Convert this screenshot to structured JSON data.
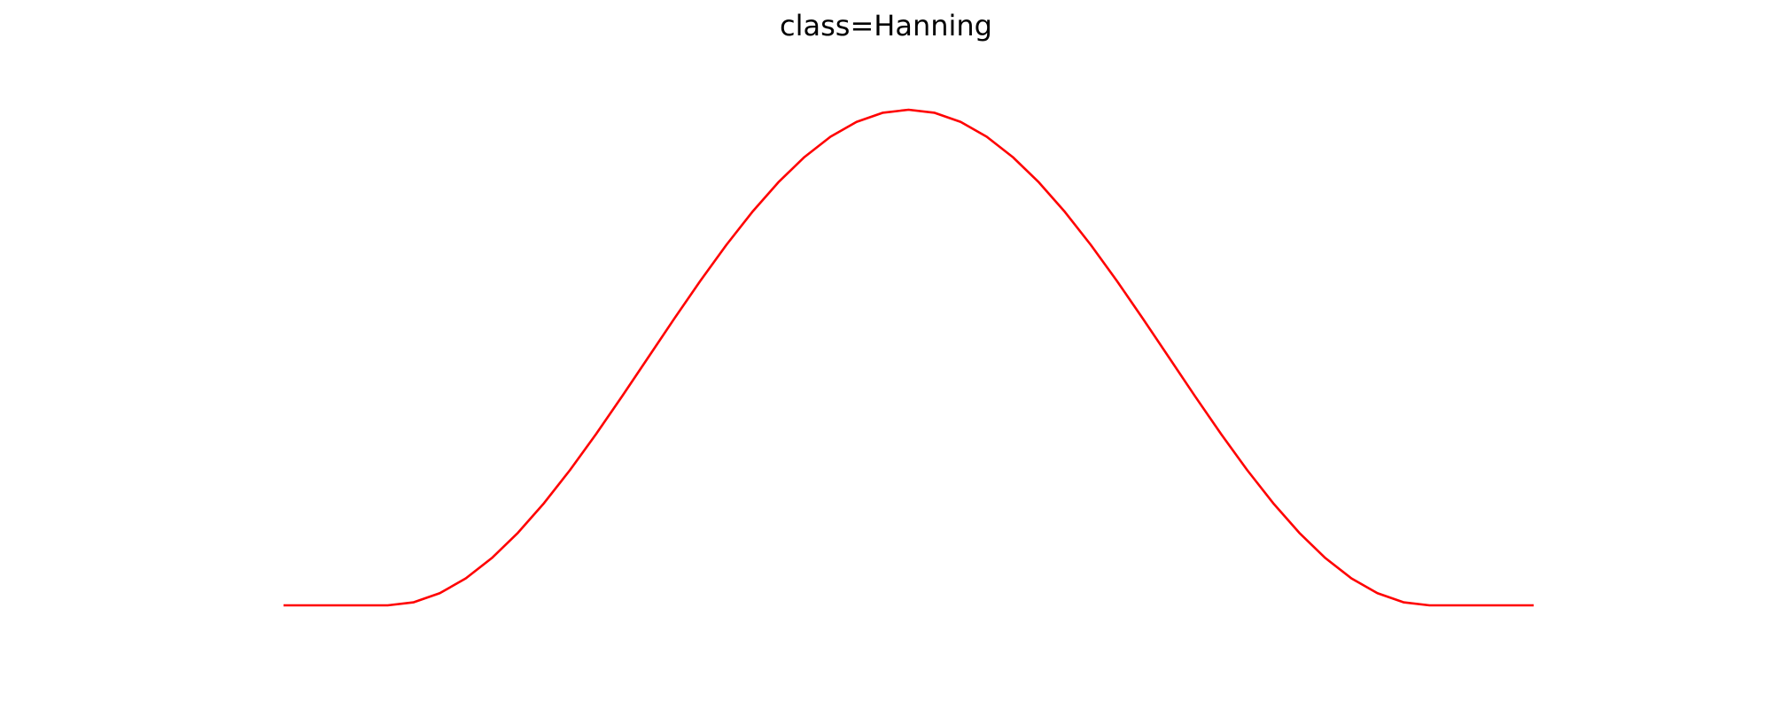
{
  "chart_data": {
    "type": "line",
    "title": "class=Hanning",
    "xlabel": "",
    "ylabel": "",
    "axes_visible": false,
    "grid": false,
    "series": [
      {
        "color": "#ff0000",
        "x": [
          -6,
          -5,
          -4.75,
          -4.5,
          -4.25,
          -4,
          -3.75,
          -3.5,
          -3.25,
          -3,
          -2.75,
          -2.5,
          -2.25,
          -2,
          -1.75,
          -1.5,
          -1.25,
          -1,
          -0.75,
          -0.5,
          -0.25,
          0,
          0.25,
          0.5,
          0.75,
          1,
          1.25,
          1.5,
          1.75,
          2,
          2.25,
          2.5,
          2.75,
          3,
          3.25,
          3.5,
          3.75,
          4,
          4.25,
          4.5,
          4.75,
          5,
          6
        ],
        "y": [
          0,
          0,
          0.0062,
          0.0245,
          0.0545,
          0.0955,
          0.1464,
          0.2061,
          0.273,
          0.3455,
          0.4218,
          0.5,
          0.5782,
          0.6545,
          0.727,
          0.7939,
          0.8536,
          0.9045,
          0.9455,
          0.9755,
          0.9938,
          1,
          0.9938,
          0.9755,
          0.9455,
          0.9045,
          0.8536,
          0.7939,
          0.727,
          0.6545,
          0.5782,
          0.5,
          0.4218,
          0.3455,
          0.273,
          0.2061,
          0.1464,
          0.0955,
          0.0545,
          0.0245,
          0.0062,
          0,
          0
        ]
      }
    ],
    "xlim": [
      -6,
      6
    ],
    "ylim": [
      0,
      1
    ]
  }
}
